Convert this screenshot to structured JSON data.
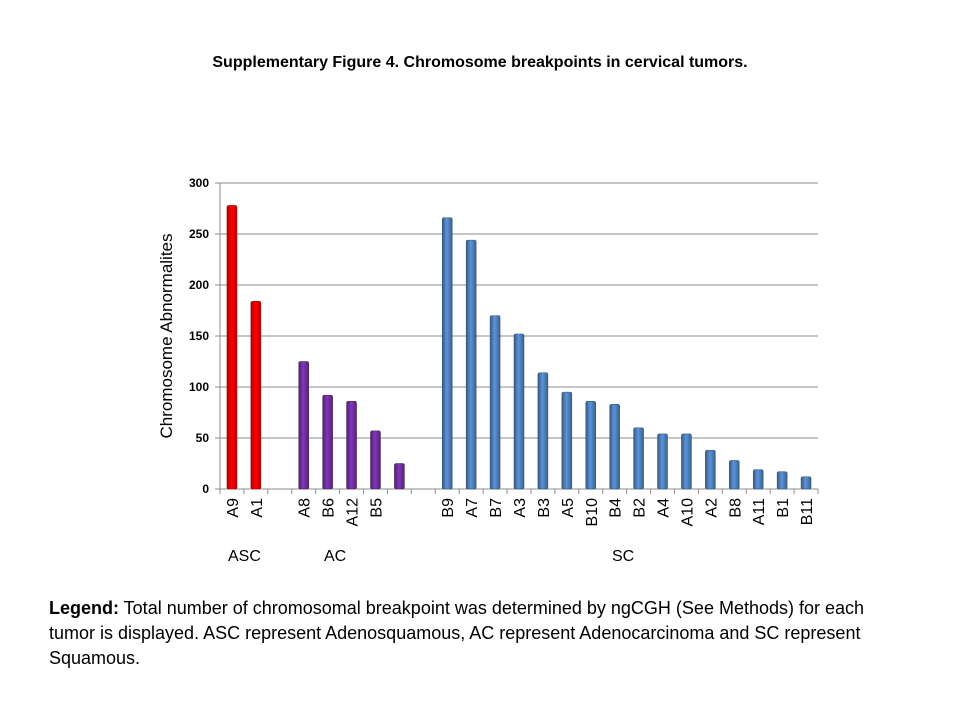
{
  "figure_title": "Supplementary Figure 4. Chromosome breakpoints in cervical tumors.",
  "chart_data": {
    "type": "bar",
    "title": "",
    "xlabel": "",
    "ylabel": "Chromosome Abnormalites",
    "ylim": [
      0,
      300
    ],
    "yticks": [
      0,
      50,
      100,
      150,
      200,
      250,
      300
    ],
    "grid": true,
    "categories": [
      "A9",
      "A1",
      "",
      "A8",
      "B6",
      "A12",
      "B5",
      "",
      "",
      "B9",
      "A7",
      "B7",
      "A3",
      "B3",
      "A5",
      "B10",
      "B4",
      "B2",
      "A4",
      "A10",
      "A2",
      "B8",
      "A11",
      "B1",
      "B11"
    ],
    "values": [
      278,
      184,
      null,
      125,
      92,
      86,
      57,
      25,
      null,
      266,
      244,
      170,
      152,
      114,
      95,
      86,
      83,
      60,
      54,
      54,
      38,
      28,
      19,
      17,
      12
    ],
    "bar_colors": [
      "#ff0000",
      "#ff0000",
      null,
      "#7030a0",
      "#7030a0",
      "#7030a0",
      "#7030a0",
      "#7030a0",
      null,
      "#4f81bd",
      "#4f81bd",
      "#4f81bd",
      "#4f81bd",
      "#4f81bd",
      "#4f81bd",
      "#4f81bd",
      "#4f81bd",
      "#4f81bd",
      "#4f81bd",
      "#4f81bd",
      "#4f81bd",
      "#4f81bd",
      "#4f81bd",
      "#4f81bd",
      "#4f81bd"
    ],
    "groups": [
      {
        "label": "ASC",
        "color": "#ff0000"
      },
      {
        "label": "AC",
        "color": "#7030a0"
      },
      {
        "label": "SC",
        "color": "#4f81bd"
      }
    ]
  },
  "legend": {
    "bold": "Legend:",
    "text": " Total number of chromosomal breakpoint was determined by ngCGH (See Methods) for each tumor is displayed. ASC represent Adenosquamous, AC represent Adenocarcinoma and SC represent Squamous."
  }
}
